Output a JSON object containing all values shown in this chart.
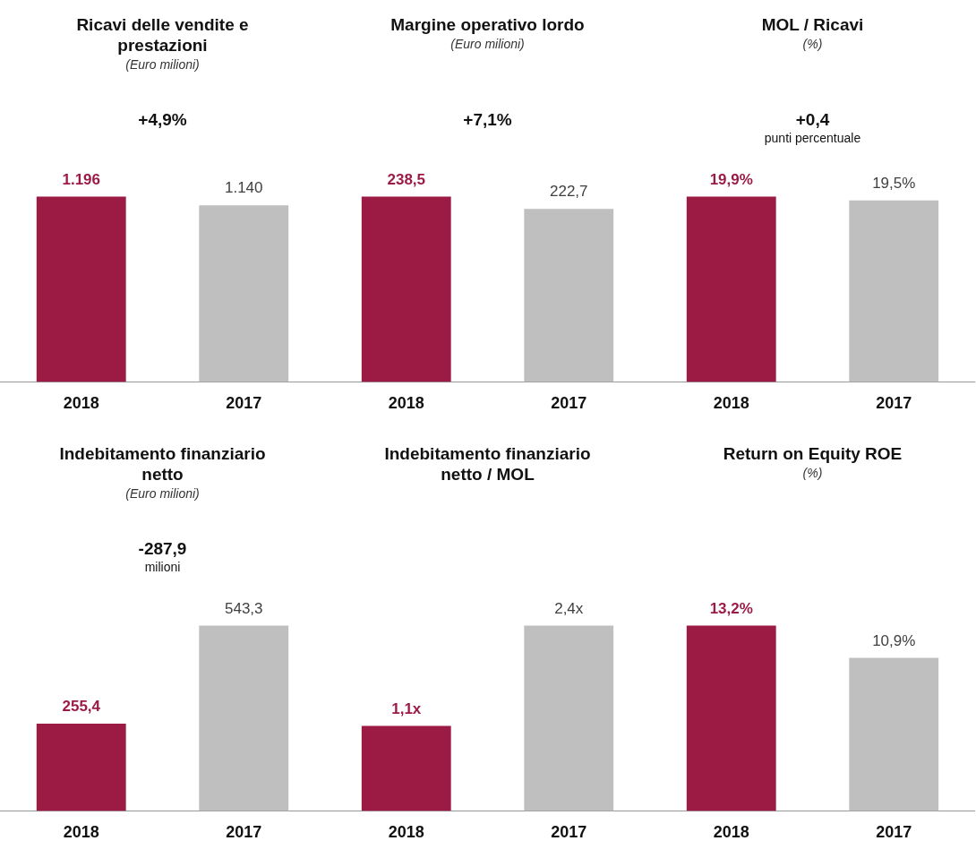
{
  "chart_data": [
    {
      "type": "bar",
      "title": "Ricavi delle vendite e prestazioni",
      "subtitle": "(Euro milioni)",
      "categories": [
        "2018",
        "2017"
      ],
      "values": [
        1196,
        1140
      ],
      "colors": [
        "#9b1b45",
        "#bfbfbf"
      ],
      "value_labels": [
        "1.196",
        "1.140"
      ],
      "annotations": [
        "+4,9%"
      ],
      "tick_labels": "x"
    },
    {
      "type": "bar",
      "title": "Margine operativo lordo",
      "subtitle": "(Euro milioni)",
      "categories": [
        "2018",
        "2017"
      ],
      "values": [
        238.5,
        222.7
      ],
      "colors": [
        "#9b1b45",
        "#bfbfbf"
      ],
      "value_labels": [
        "238,5",
        "222,7"
      ],
      "annotations": [
        "+7,1%"
      ],
      "tick_labels": "x"
    },
    {
      "type": "bar",
      "title": "MOL / Ricavi",
      "subtitle": "(%)",
      "categories": [
        "2018",
        "2017"
      ],
      "values": [
        19.9,
        19.5
      ],
      "colors": [
        "#9b1b45",
        "#bfbfbf"
      ],
      "value_labels": [
        "19,9%",
        "19,5%"
      ],
      "annotations": [
        "+0,4",
        "punti percentuale"
      ],
      "tick_labels": "x"
    },
    {
      "type": "bar",
      "title": "Indebitamento finanziario netto",
      "subtitle": "(Euro milioni)",
      "categories": [
        "2018",
        "2017"
      ],
      "values": [
        255.4,
        543.3
      ],
      "colors": [
        "#9b1b45",
        "#bfbfbf"
      ],
      "value_labels": [
        "255,4",
        "543,3"
      ],
      "annotations": [
        "-287,9",
        "milioni"
      ],
      "tick_labels": "x"
    },
    {
      "type": "bar",
      "title": "Indebitamento finanziario netto / MOL",
      "categories": [
        "2018",
        "2017"
      ],
      "values": [
        1.1,
        2.4
      ],
      "colors": [
        "#9b1b45",
        "#bfbfbf"
      ],
      "value_labels": [
        "1,1x",
        "2,4x"
      ],
      "tick_labels": "x"
    },
    {
      "type": "bar",
      "title": "Return on Equity ROE",
      "subtitle": "(%)",
      "categories": [
        "2018",
        "2017"
      ],
      "values": [
        13.2,
        10.9
      ],
      "colors": [
        "#9b1b45",
        "#bfbfbf"
      ],
      "value_labels": [
        "13,2%",
        "10,9%"
      ],
      "tick_labels": "x"
    }
  ]
}
